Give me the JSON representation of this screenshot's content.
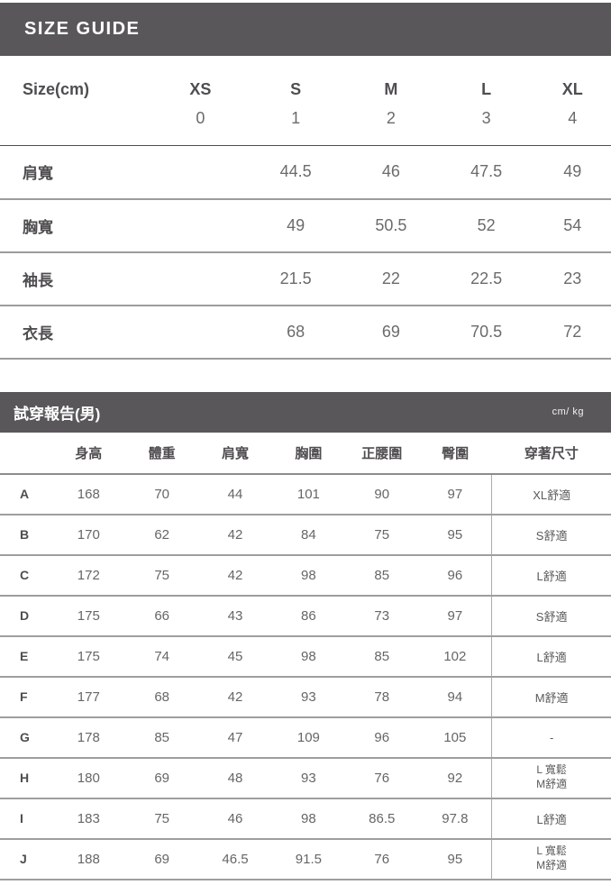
{
  "size_guide": {
    "title": "SIZE GUIDE",
    "unit_label": "Size(cm)",
    "columns": [
      {
        "label": "XS",
        "num": "0"
      },
      {
        "label": "S",
        "num": "1"
      },
      {
        "label": "M",
        "num": "2"
      },
      {
        "label": "L",
        "num": "3"
      },
      {
        "label": "XL",
        "num": "4"
      }
    ],
    "rows": [
      {
        "label": "肩寬",
        "values": [
          "",
          "44.5",
          "46",
          "47.5",
          "49"
        ]
      },
      {
        "label": "胸寬",
        "values": [
          "",
          "49",
          "50.5",
          "52",
          "54"
        ]
      },
      {
        "label": "袖長",
        "values": [
          "",
          "21.5",
          "22",
          "22.5",
          "23"
        ]
      },
      {
        "label": "衣長",
        "values": [
          "",
          "68",
          "69",
          "70.5",
          "72"
        ]
      }
    ]
  },
  "fitting_report": {
    "title": "試穿報告(男)",
    "unit_label": "cm/ kg",
    "columns": [
      "身高",
      "體重",
      "肩寬",
      "胸圍",
      "正腰圍",
      "臀圍",
      "穿著尺寸"
    ],
    "rows": [
      {
        "label": "A",
        "values": [
          "168",
          "70",
          "44",
          "101",
          "90",
          "97"
        ],
        "fit": [
          "XL舒適"
        ]
      },
      {
        "label": "B",
        "values": [
          "170",
          "62",
          "42",
          "84",
          "75",
          "95"
        ],
        "fit": [
          "S舒適"
        ]
      },
      {
        "label": "C",
        "values": [
          "172",
          "75",
          "42",
          "98",
          "85",
          "96"
        ],
        "fit": [
          "L舒適"
        ]
      },
      {
        "label": "D",
        "values": [
          "175",
          "66",
          "43",
          "86",
          "73",
          "97"
        ],
        "fit": [
          "S舒適"
        ]
      },
      {
        "label": "E",
        "values": [
          "175",
          "74",
          "45",
          "98",
          "85",
          "102"
        ],
        "fit": [
          "L舒適"
        ]
      },
      {
        "label": "F",
        "values": [
          "177",
          "68",
          "42",
          "93",
          "78",
          "94"
        ],
        "fit": [
          "M舒適"
        ]
      },
      {
        "label": "G",
        "values": [
          "178",
          "85",
          "47",
          "109",
          "96",
          "105"
        ],
        "fit": [
          "-"
        ]
      },
      {
        "label": "H",
        "values": [
          "180",
          "69",
          "48",
          "93",
          "76",
          "92"
        ],
        "fit": [
          "L 寬鬆",
          "M舒適"
        ]
      },
      {
        "label": "I",
        "values": [
          "183",
          "75",
          "46",
          "98",
          "86.5",
          "97.8"
        ],
        "fit": [
          "L舒適"
        ]
      },
      {
        "label": "J",
        "values": [
          "188",
          "69",
          "46.5",
          "91.5",
          "76",
          "95"
        ],
        "fit": [
          "L 寬鬆",
          "M舒適"
        ]
      }
    ]
  },
  "colors": {
    "header_bar_bg": "#59575a",
    "header_bar_text": "#ffffff",
    "label_text": "#4f4d50",
    "value_text": "#6b6b6b",
    "row_line": "#9c9c9c",
    "size_header_underline": "#4f4f4f"
  }
}
